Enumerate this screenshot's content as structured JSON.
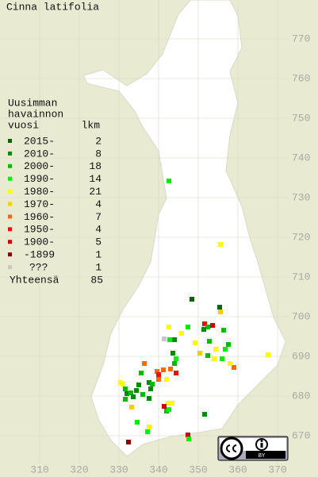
{
  "title": "Cinna latifolia",
  "legend": {
    "header": [
      "Uusimman",
      "havainnon",
      "vuosi"
    ],
    "count_header": "lkm",
    "rows": [
      {
        "label": "2015-",
        "count": 2,
        "color": "#006400"
      },
      {
        "label": "2010-",
        "count": 8,
        "color": "#008a00"
      },
      {
        "label": "2000-",
        "count": 18,
        "color": "#00bb00"
      },
      {
        "label": "1990-",
        "count": 14,
        "color": "#00ee00"
      },
      {
        "label": "1980-",
        "count": 21,
        "color": "#ffff00"
      },
      {
        "label": "1970-",
        "count": 4,
        "color": "#ffcc00"
      },
      {
        "label": "1960-",
        "count": 7,
        "color": "#ff6a00"
      },
      {
        "label": "1950-",
        "count": 4,
        "color": "#ee1100"
      },
      {
        "label": "1900-",
        "count": 5,
        "color": "#cc0000"
      },
      {
        "label": "-1899",
        "count": 1,
        "color": "#880000"
      },
      {
        "label": "???",
        "count": 1,
        "color": "#c8c8c8"
      }
    ],
    "total_label": "Yhteensä",
    "total": 85
  },
  "xticks": [
    310,
    320,
    330,
    340,
    350,
    360,
    370
  ],
  "yticks": [
    670,
    680,
    690,
    700,
    710,
    720,
    730,
    740,
    750,
    760,
    770
  ],
  "xlim": [
    300,
    380
  ],
  "ylim": [
    660,
    780
  ],
  "license": "BY",
  "points": [
    {
      "x": 342.6,
      "y": 734.2,
      "period": 3
    },
    {
      "x": 355.6,
      "y": 718.2,
      "period": 4
    },
    {
      "x": 348.4,
      "y": 704.4,
      "period": 0
    },
    {
      "x": 355.4,
      "y": 702.4,
      "period": 0
    },
    {
      "x": 355.6,
      "y": 701.2,
      "period": 5
    },
    {
      "x": 342.6,
      "y": 697.4,
      "period": 4
    },
    {
      "x": 347.4,
      "y": 697.4,
      "period": 3
    },
    {
      "x": 351.6,
      "y": 698.2,
      "period": 7
    },
    {
      "x": 352.4,
      "y": 697.4,
      "period": 2
    },
    {
      "x": 353.6,
      "y": 697.8,
      "period": 8
    },
    {
      "x": 351.4,
      "y": 696.8,
      "period": 1
    },
    {
      "x": 356.4,
      "y": 696.6,
      "period": 2
    },
    {
      "x": 345.8,
      "y": 695.8,
      "period": 4
    },
    {
      "x": 341.4,
      "y": 694.4,
      "period": 10
    },
    {
      "x": 342.8,
      "y": 694.2,
      "period": 3
    },
    {
      "x": 344,
      "y": 694.2,
      "period": 1
    },
    {
      "x": 349.2,
      "y": 693.4,
      "period": 4
    },
    {
      "x": 352.8,
      "y": 693.8,
      "period": 2
    },
    {
      "x": 354.4,
      "y": 691.8,
      "period": 4
    },
    {
      "x": 357.6,
      "y": 693,
      "period": 2
    },
    {
      "x": 356.8,
      "y": 691.8,
      "period": 3
    },
    {
      "x": 350.4,
      "y": 690.8,
      "period": 5
    },
    {
      "x": 352.4,
      "y": 690.2,
      "period": 2
    },
    {
      "x": 354,
      "y": 689.4,
      "period": 4
    },
    {
      "x": 356,
      "y": 689.4,
      "period": 3
    },
    {
      "x": 367.6,
      "y": 690.4,
      "period": 4
    },
    {
      "x": 359,
      "y": 687.2,
      "period": 6
    },
    {
      "x": 358,
      "y": 688.2,
      "period": 4
    },
    {
      "x": 343.6,
      "y": 690.8,
      "period": 1
    },
    {
      "x": 344.4,
      "y": 689.4,
      "period": 3
    },
    {
      "x": 344,
      "y": 688.2,
      "period": 2
    },
    {
      "x": 343,
      "y": 686.8,
      "period": 6
    },
    {
      "x": 341.2,
      "y": 686.6,
      "period": 6
    },
    {
      "x": 339.6,
      "y": 686.2,
      "period": 6
    },
    {
      "x": 340,
      "y": 684.2,
      "period": 6
    },
    {
      "x": 342,
      "y": 684.2,
      "period": 4
    },
    {
      "x": 344.4,
      "y": 685.8,
      "period": 7
    },
    {
      "x": 336.4,
      "y": 688.2,
      "period": 6
    },
    {
      "x": 335.6,
      "y": 685.8,
      "period": 2
    },
    {
      "x": 337.6,
      "y": 683.4,
      "period": 1
    },
    {
      "x": 338,
      "y": 681.8,
      "period": 1
    },
    {
      "x": 338.4,
      "y": 683,
      "period": 2
    },
    {
      "x": 335,
      "y": 682.8,
      "period": 1
    },
    {
      "x": 334.4,
      "y": 681.4,
      "period": 1
    },
    {
      "x": 331,
      "y": 683,
      "period": 4
    },
    {
      "x": 331.6,
      "y": 681.8,
      "period": 2
    },
    {
      "x": 332,
      "y": 680.6,
      "period": 1
    },
    {
      "x": 333,
      "y": 680.8,
      "period": 2
    },
    {
      "x": 333.6,
      "y": 679.8,
      "period": 1
    },
    {
      "x": 336,
      "y": 680.4,
      "period": 2
    },
    {
      "x": 337.6,
      "y": 679.4,
      "period": 1
    },
    {
      "x": 340,
      "y": 685.4,
      "period": 7
    },
    {
      "x": 330.4,
      "y": 683.4,
      "period": 4
    },
    {
      "x": 331.6,
      "y": 679.2,
      "period": 2
    },
    {
      "x": 342.4,
      "y": 678.2,
      "period": 4
    },
    {
      "x": 343.4,
      "y": 678.2,
      "period": 4
    },
    {
      "x": 341.4,
      "y": 677.4,
      "period": 8
    },
    {
      "x": 342,
      "y": 676.2,
      "period": 2
    },
    {
      "x": 342.6,
      "y": 676.6,
      "period": 3
    },
    {
      "x": 351.6,
      "y": 675.4,
      "period": 1
    },
    {
      "x": 333.2,
      "y": 677.2,
      "period": 5
    },
    {
      "x": 334.6,
      "y": 673.4,
      "period": 3
    },
    {
      "x": 337.6,
      "y": 672.2,
      "period": 4
    },
    {
      "x": 337.2,
      "y": 671,
      "period": 3
    },
    {
      "x": 332.4,
      "y": 668.4,
      "period": 9
    },
    {
      "x": 347.4,
      "y": 670.2,
      "period": 8
    },
    {
      "x": 347.6,
      "y": 669.2,
      "period": 3
    }
  ]
}
